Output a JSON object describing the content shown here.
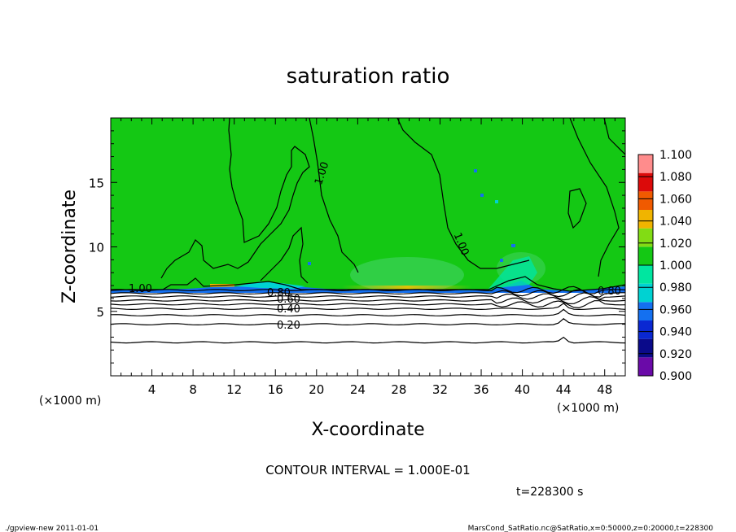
{
  "chart_data": {
    "type": "heatmap",
    "title": "saturation ratio",
    "xlabel": "X-coordinate",
    "ylabel": "Z-coordinate",
    "x_unit": "(×1000 m)",
    "x_unit_secondary": "(×1000 m)",
    "xlim": [
      0,
      50
    ],
    "ylim": [
      0,
      20
    ],
    "x_ticks": [
      4,
      8,
      12,
      16,
      20,
      24,
      28,
      32,
      36,
      40,
      44,
      48
    ],
    "y_ticks": [
      5,
      10,
      15
    ],
    "colorbar": {
      "levels": [
        0.9,
        0.92,
        0.94,
        0.96,
        0.98,
        1.0,
        1.02,
        1.04,
        1.06,
        1.08,
        1.1
      ],
      "tick_labels": [
        "0.900",
        "0.920",
        "0.940",
        "0.960",
        "0.980",
        "1.000",
        "1.020",
        "1.040",
        "1.060",
        "1.080",
        "1.100"
      ],
      "colors": [
        "#6a0aa8",
        "#0a0a8a",
        "#0a28d2",
        "#1470f0",
        "#00d2d2",
        "#00e6a0",
        "#14c814",
        "#82dc14",
        "#f0b400",
        "#f05a00",
        "#dc0a0a",
        "#ff8c8c"
      ]
    },
    "contour_labels": [
      {
        "text": "1.00",
        "x": 2.5,
        "z": 6.9
      },
      {
        "text": "0.80",
        "x": 17.5,
        "z": 6.3
      },
      {
        "text": "0.60",
        "x": 17.8,
        "z": 5.8
      },
      {
        "text": "0.40",
        "x": 17.5,
        "z": 5.2
      },
      {
        "text": "0.20",
        "x": 17.5,
        "z": 4.0
      },
      {
        "text": "1.00",
        "x": 19,
        "z": 15.8
      },
      {
        "text": "1.00",
        "x": 33,
        "z": 10.2
      },
      {
        "text": "0.80",
        "x": 48,
        "z": 6.5
      }
    ],
    "contour_levels_z": [
      {
        "level": 0.2,
        "z": 4.0
      },
      {
        "level": 0.3,
        "z": 4.7
      },
      {
        "level": 0.4,
        "z": 5.2
      },
      {
        "level": 0.5,
        "z": 5.55
      },
      {
        "level": 0.6,
        "z": 5.85
      },
      {
        "level": 0.7,
        "z": 6.15
      },
      {
        "level": 0.8,
        "z": 6.4
      },
      {
        "level": 0.9,
        "z": 6.65
      },
      {
        "level": 1.0,
        "z": 6.9
      },
      {
        "level": 0.1,
        "z": 2.6
      }
    ],
    "contour_interval": "CONTOUR INTERVAL = 1.000E-01",
    "time": "t=228300 s"
  },
  "footer": {
    "left": "./gpview-new  2011-01-01",
    "right": "MarsCond_SatRatio.nc@SatRatio,x=0:50000,z=0:20000,t=228300"
  }
}
